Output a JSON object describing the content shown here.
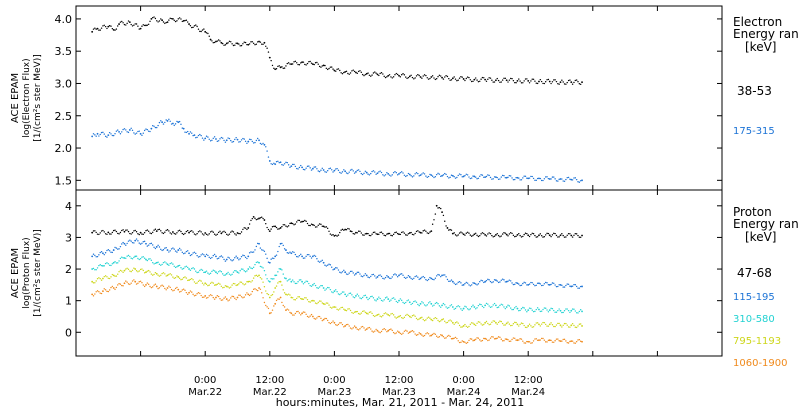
{
  "chart_data": [
    {
      "type": "scatter",
      "panel": "electron",
      "ylabel_lines": [
        "ACE EPAM",
        "log(Electron Flux)",
        "[1/(cm²s ster MeV)]"
      ],
      "ylim": [
        1.35,
        4.2
      ],
      "yticks": [
        1.5,
        2.0,
        2.5,
        3.0,
        3.5,
        4.0
      ],
      "ytick_labels": [
        "1.5",
        "2.0",
        "2.5",
        "3.0",
        "3.5",
        "4.0"
      ],
      "legend_title": [
        "Electron",
        "Energy ran",
        "[keV]"
      ],
      "series": [
        {
          "name": "38-53",
          "color": "#000000",
          "x": [
            -21,
            -20,
            -18,
            -17,
            -16,
            -14,
            -12,
            -11,
            -10,
            -8,
            -7,
            -6,
            -4,
            -3,
            0,
            1,
            2,
            3,
            4,
            6,
            8,
            10,
            11,
            12,
            13,
            14,
            16,
            18,
            20,
            22,
            24,
            26,
            28,
            30,
            32,
            34,
            36,
            38,
            40,
            42,
            44,
            46,
            48,
            50,
            52,
            54,
            56,
            58,
            60,
            62,
            64,
            66,
            68,
            70
          ],
          "y": [
            3.8,
            3.85,
            3.88,
            3.83,
            3.92,
            3.95,
            3.85,
            3.9,
            4.0,
            3.98,
            3.95,
            4.0,
            3.97,
            3.92,
            3.8,
            3.68,
            3.65,
            3.63,
            3.62,
            3.62,
            3.6,
            3.65,
            3.63,
            3.4,
            3.22,
            3.25,
            3.3,
            3.33,
            3.3,
            3.28,
            3.2,
            3.18,
            3.17,
            3.15,
            3.14,
            3.12,
            3.12,
            3.11,
            3.1,
            3.1,
            3.09,
            3.08,
            3.07,
            3.06,
            3.06,
            3.05,
            3.05,
            3.04,
            3.04,
            3.03,
            3.03,
            3.02,
            3.02,
            3.02
          ]
        },
        {
          "name": "175-315",
          "color": "#1c73d6",
          "x": [
            -21,
            -20,
            -18,
            -16,
            -14,
            -12,
            -10,
            -8,
            -7,
            -6,
            -5,
            -4,
            -3,
            -2,
            0,
            2,
            4,
            6,
            8,
            10,
            11,
            12,
            13,
            14,
            16,
            18,
            20,
            22,
            24,
            26,
            28,
            30,
            32,
            34,
            36,
            38,
            40,
            42,
            44,
            46,
            48,
            50,
            52,
            54,
            56,
            58,
            60,
            62,
            64,
            66,
            68,
            70
          ],
          "y": [
            2.18,
            2.22,
            2.2,
            2.25,
            2.28,
            2.22,
            2.3,
            2.4,
            2.42,
            2.38,
            2.4,
            2.3,
            2.22,
            2.2,
            2.15,
            2.14,
            2.12,
            2.13,
            2.1,
            2.12,
            2.05,
            1.8,
            1.75,
            1.78,
            1.72,
            1.7,
            1.68,
            1.66,
            1.65,
            1.64,
            1.63,
            1.62,
            1.61,
            1.6,
            1.6,
            1.59,
            1.58,
            1.58,
            1.57,
            1.57,
            1.56,
            1.56,
            1.55,
            1.55,
            1.54,
            1.54,
            1.53,
            1.53,
            1.52,
            1.52,
            1.51,
            1.5
          ]
        }
      ]
    },
    {
      "type": "scatter",
      "panel": "proton",
      "ylabel_lines": [
        "ACE EPAM",
        "log(Proton Flux)",
        "[1/(cm²s ster MeV)]"
      ],
      "ylim": [
        -0.75,
        4.5
      ],
      "yticks": [
        0,
        1,
        2,
        3,
        4
      ],
      "ytick_labels": [
        "0",
        "1",
        "2",
        "3",
        "4"
      ],
      "legend_title": [
        "Proton",
        "Energy ran",
        "[keV]"
      ],
      "series": [
        {
          "name": "47-68",
          "color": "#000000",
          "x": [
            -21,
            -18,
            -15,
            -12,
            -9,
            -6,
            -3,
            0,
            3,
            6,
            8,
            9,
            10,
            11,
            12,
            13,
            14,
            16,
            18,
            20,
            22,
            24,
            26,
            27,
            28,
            30,
            32,
            34,
            36,
            38,
            40,
            42,
            43,
            44,
            45,
            46,
            48,
            50,
            52,
            54,
            56,
            58,
            60,
            62,
            64,
            66,
            68,
            70
          ],
          "y": [
            3.15,
            3.16,
            3.18,
            3.15,
            3.2,
            3.17,
            3.15,
            3.14,
            3.13,
            3.14,
            3.3,
            3.65,
            3.6,
            3.55,
            3.2,
            3.35,
            3.3,
            3.45,
            3.5,
            3.4,
            3.35,
            3.05,
            3.25,
            3.2,
            3.15,
            3.12,
            3.1,
            3.12,
            3.1,
            3.14,
            3.15,
            3.2,
            4.0,
            3.8,
            3.3,
            3.12,
            3.1,
            3.1,
            3.08,
            3.08,
            3.09,
            3.08,
            3.07,
            3.07,
            3.07,
            3.07,
            3.06,
            3.06
          ]
        },
        {
          "name": "115-195",
          "color": "#1c73d6",
          "x": [
            -21,
            -19,
            -17,
            -15,
            -13,
            -11,
            -9,
            -7,
            -5,
            -3,
            0,
            2,
            4,
            6,
            8,
            10,
            12,
            13,
            14,
            15,
            16,
            18,
            20,
            22,
            24,
            26,
            28,
            30,
            32,
            34,
            36,
            38,
            40,
            42,
            44,
            46,
            48,
            50,
            52,
            54,
            56,
            58,
            60,
            62,
            64,
            66,
            68,
            70
          ],
          "y": [
            2.4,
            2.5,
            2.6,
            2.8,
            2.9,
            2.8,
            2.7,
            2.6,
            2.6,
            2.5,
            2.4,
            2.4,
            2.3,
            2.35,
            2.4,
            2.8,
            2.2,
            2.4,
            2.8,
            2.6,
            2.5,
            2.4,
            2.4,
            2.2,
            2.0,
            1.9,
            1.85,
            1.8,
            1.75,
            1.75,
            1.8,
            1.75,
            1.7,
            1.7,
            1.8,
            1.6,
            1.5,
            1.55,
            1.6,
            1.65,
            1.6,
            1.55,
            1.5,
            1.55,
            1.5,
            1.5,
            1.45,
            1.45
          ]
        },
        {
          "name": "310-580",
          "color": "#22d2d2",
          "x": [
            -21,
            -19,
            -17,
            -15,
            -13,
            -11,
            -9,
            -7,
            -5,
            -3,
            0,
            2,
            4,
            6,
            8,
            10,
            12,
            13,
            14,
            15,
            16,
            18,
            20,
            22,
            24,
            26,
            28,
            30,
            32,
            34,
            36,
            38,
            40,
            42,
            44,
            46,
            48,
            50,
            52,
            54,
            56,
            58,
            60,
            62,
            64,
            66,
            68,
            70
          ],
          "y": [
            2.0,
            2.1,
            2.2,
            2.35,
            2.4,
            2.3,
            2.2,
            2.15,
            2.1,
            2.0,
            1.9,
            1.9,
            1.85,
            1.9,
            2.0,
            2.2,
            1.6,
            1.8,
            2.0,
            1.7,
            1.6,
            1.6,
            1.5,
            1.4,
            1.3,
            1.2,
            1.15,
            1.1,
            1.05,
            1.05,
            1.0,
            0.95,
            0.9,
            0.9,
            0.85,
            0.8,
            0.75,
            0.8,
            0.85,
            0.85,
            0.8,
            0.75,
            0.7,
            0.72,
            0.7,
            0.68,
            0.68,
            0.66
          ]
        },
        {
          "name": "795-1193",
          "color": "#cdd61a",
          "x": [
            -21,
            -19,
            -17,
            -15,
            -13,
            -11,
            -9,
            -7,
            -5,
            -3,
            0,
            2,
            4,
            6,
            8,
            10,
            12,
            13,
            14,
            15,
            16,
            18,
            20,
            22,
            24,
            26,
            28,
            30,
            32,
            34,
            36,
            38,
            40,
            42,
            44,
            46,
            48,
            50,
            52,
            54,
            56,
            58,
            60,
            62,
            64,
            66,
            68,
            70
          ],
          "y": [
            1.6,
            1.7,
            1.8,
            1.95,
            2.0,
            1.9,
            1.85,
            1.8,
            1.75,
            1.65,
            1.55,
            1.5,
            1.45,
            1.5,
            1.6,
            1.8,
            1.1,
            1.4,
            1.6,
            1.2,
            1.1,
            1.05,
            1.0,
            0.9,
            0.8,
            0.7,
            0.65,
            0.6,
            0.55,
            0.55,
            0.5,
            0.5,
            0.45,
            0.4,
            0.4,
            0.3,
            0.2,
            0.25,
            0.3,
            0.3,
            0.28,
            0.25,
            0.2,
            0.25,
            0.25,
            0.22,
            0.22,
            0.2
          ]
        },
        {
          "name": "1060-1900",
          "color": "#f08a1c",
          "x": [
            -21,
            -19,
            -17,
            -15,
            -13,
            -11,
            -9,
            -7,
            -5,
            -3,
            0,
            2,
            4,
            6,
            8,
            10,
            12,
            13,
            14,
            15,
            16,
            18,
            20,
            22,
            24,
            26,
            28,
            30,
            32,
            34,
            36,
            38,
            40,
            42,
            44,
            46,
            48,
            50,
            52,
            54,
            56,
            58,
            60,
            62,
            64,
            66,
            68,
            70
          ],
          "y": [
            1.2,
            1.3,
            1.4,
            1.55,
            1.6,
            1.5,
            1.45,
            1.4,
            1.35,
            1.25,
            1.15,
            1.1,
            1.05,
            1.1,
            1.2,
            1.4,
            0.6,
            0.9,
            1.1,
            0.7,
            0.6,
            0.6,
            0.5,
            0.4,
            0.3,
            0.2,
            0.15,
            0.1,
            0.05,
            0.05,
            0.0,
            0.0,
            -0.05,
            -0.1,
            -0.1,
            -0.2,
            -0.3,
            -0.25,
            -0.2,
            -0.2,
            -0.22,
            -0.25,
            -0.3,
            -0.25,
            -0.25,
            -0.28,
            -0.28,
            -0.3
          ]
        }
      ]
    }
  ],
  "x_axis": {
    "unit": "hours from 2011-03-22 00:00 UT",
    "xlim": [
      -24,
      96
    ],
    "ticks": [
      {
        "x": 0,
        "time": "0:00",
        "date": "Mar.22"
      },
      {
        "x": 12,
        "time": "12:00",
        "date": "Mar.22"
      },
      {
        "x": 24,
        "time": "0:00",
        "date": "Mar.23"
      },
      {
        "x": 36,
        "time": "12:00",
        "date": "Mar.23"
      },
      {
        "x": 48,
        "time": "0:00",
        "date": "Mar.24"
      },
      {
        "x": 60,
        "time": "12:00",
        "date": "Mar.24"
      }
    ],
    "label": "hours:minutes, Mar. 21, 2011 - Mar. 24, 2011"
  }
}
